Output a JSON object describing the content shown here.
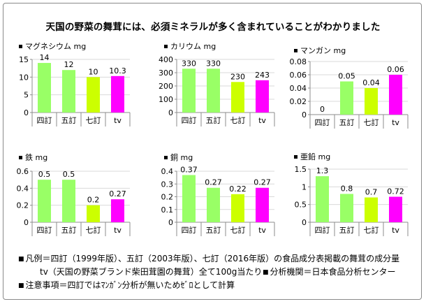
{
  "title": "天国の野菜の舞茸には、必須ミネラルが多く含まれていることがわかりました",
  "legend_marker": "■",
  "chart_data": [
    {
      "type": "bar",
      "title": "マグネシウム mg",
      "categories": [
        "四訂",
        "五訂",
        "七訂",
        "tv"
      ],
      "values": [
        14,
        12,
        10,
        10.3
      ],
      "labels": [
        "14",
        "12",
        "10",
        "10.3"
      ],
      "ylim": [
        0,
        15
      ],
      "yticks": [
        "0",
        "5",
        "10",
        "15"
      ]
    },
    {
      "type": "bar",
      "title": "カリウム mg",
      "categories": [
        "四訂",
        "五訂",
        "七訂",
        "tv"
      ],
      "values": [
        330,
        330,
        230,
        243
      ],
      "labels": [
        "330",
        "330",
        "230",
        "243"
      ],
      "ylim": [
        0,
        400
      ],
      "yticks": [
        "0",
        "100",
        "200",
        "300",
        "400"
      ]
    },
    {
      "type": "bar",
      "title": "マンガン mg",
      "categories": [
        "四訂",
        "五訂",
        "七訂",
        "tv"
      ],
      "values": [
        0,
        0.05,
        0.04,
        0.06
      ],
      "labels": [
        "0",
        "0.05",
        "0.04",
        "0.06"
      ],
      "ylim": [
        0,
        0.08
      ],
      "yticks": [
        "0",
        "0.02",
        "0.04",
        "0.06",
        "0.08"
      ]
    },
    {
      "type": "bar",
      "title": "鉄 mg",
      "categories": [
        "四訂",
        "五訂",
        "七訂",
        "tv"
      ],
      "values": [
        0.5,
        0.5,
        0.2,
        0.27
      ],
      "labels": [
        "0.5",
        "0.5",
        "0.2",
        "0.27"
      ],
      "ylim": [
        0,
        0.6
      ],
      "yticks": [
        "0",
        "0.2",
        "0.4",
        "0.6"
      ]
    },
    {
      "type": "bar",
      "title": "銅 mg",
      "categories": [
        "四訂",
        "五訂",
        "七訂",
        "tv"
      ],
      "values": [
        0.37,
        0.27,
        0.22,
        0.27
      ],
      "labels": [
        "0.37",
        "0.27",
        "0.22",
        "0.27"
      ],
      "ylim": [
        0,
        0.4
      ],
      "yticks": [
        "0",
        "0.1",
        "0.2",
        "0.3",
        "0.4"
      ]
    },
    {
      "type": "bar",
      "title": "亜鉛 mg",
      "categories": [
        "四訂",
        "五訂",
        "七訂",
        "tv"
      ],
      "values": [
        1.3,
        0.8,
        0.7,
        0.72
      ],
      "labels": [
        "1.3",
        "0.8",
        "0.7",
        "0.72"
      ],
      "ylim": [
        0,
        1.5
      ],
      "yticks": [
        "0",
        "0.5",
        "1",
        "1.5"
      ]
    }
  ],
  "colors": {
    "bars": [
      "#99ff66",
      "#99ff66",
      "#ccff00",
      "#ff00ff"
    ],
    "axis": "#8c8c8c",
    "grid": "#d9d9d9"
  },
  "notes": {
    "line1": "凡例＝四訂（1999年版）、五訂（2003年版）、七訂（2016年版）の食品成分表掲載の舞茸の成分量",
    "line2a": "tv（天国の野菜ブランド柴田茸園の舞茸）全て100g当たり",
    "line2b": "分析機関＝日本食品分析センター",
    "line3": "注意事項＝四訂ではﾏﾝｶﾞﾝ分析が無いためｾﾞﾛとして計算"
  }
}
